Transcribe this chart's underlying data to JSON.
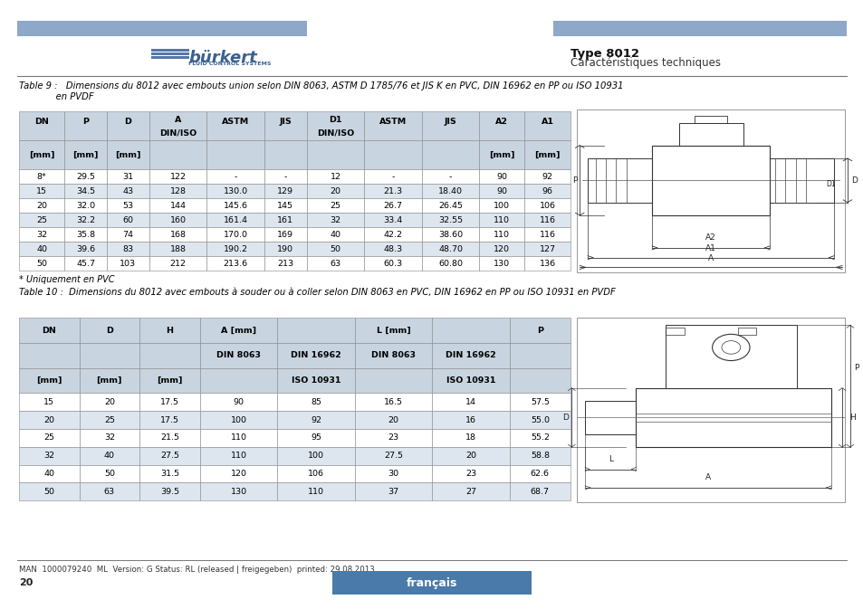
{
  "header_bar_color": "#8da8c8",
  "header_text_bold": "Type 8012",
  "header_text_normal": "Caractéristiques techniques",
  "footer_text": "MAN  1000079240  ML  Version: G Status: RL (released | freigegeben)  printed: 29.08.2013",
  "footer_label": "français",
  "footer_page": "20",
  "table1_caption_bold": "Table 9 : ",
  "table1_caption_rest": "  Dimensions du 8012 avec embouts union selon DIN 8063, ASTM D 1785/76 et JIS K en PVC, DIN 16962 en PP ou ISO 10931\n             en PVDF",
  "table1_data": [
    [
      "8*",
      "29.5",
      "31",
      "122",
      "-",
      "-",
      "12",
      "-",
      "-",
      "90",
      "92"
    ],
    [
      "15",
      "34.5",
      "43",
      "128",
      "130.0",
      "129",
      "20",
      "21.3",
      "18.40",
      "90",
      "96"
    ],
    [
      "20",
      "32.0",
      "53",
      "144",
      "145.6",
      "145",
      "25",
      "26.7",
      "26.45",
      "100",
      "106"
    ],
    [
      "25",
      "32.2",
      "60",
      "160",
      "161.4",
      "161",
      "32",
      "33.4",
      "32.55",
      "110",
      "116"
    ],
    [
      "32",
      "35.8",
      "74",
      "168",
      "170.0",
      "169",
      "40",
      "42.2",
      "38.60",
      "110",
      "116"
    ],
    [
      "40",
      "39.6",
      "83",
      "188",
      "190.2",
      "190",
      "50",
      "48.3",
      "48.70",
      "120",
      "127"
    ],
    [
      "50",
      "45.7",
      "103",
      "212",
      "213.6",
      "213",
      "63",
      "60.3",
      "60.80",
      "130",
      "136"
    ]
  ],
  "table1_footnote": "* Uniquement en PVC",
  "table2_caption_bold": "Table 10 : ",
  "table2_caption_rest": " Dimensions du 8012 avec embouts à souder ou à coller selon DIN 8063 en PVC, DIN 16962 en PP ou ISO 10931 en PVDF",
  "table2_data": [
    [
      "15",
      "20",
      "17.5",
      "90",
      "85",
      "16.5",
      "14",
      "57.5"
    ],
    [
      "20",
      "25",
      "17.5",
      "100",
      "92",
      "20",
      "16",
      "55.0"
    ],
    [
      "25",
      "32",
      "21.5",
      "110",
      "95",
      "23",
      "18",
      "55.2"
    ],
    [
      "32",
      "40",
      "27.5",
      "110",
      "100",
      "27.5",
      "20",
      "58.8"
    ],
    [
      "40",
      "50",
      "31.5",
      "120",
      "106",
      "30",
      "23",
      "62.6"
    ],
    [
      "50",
      "63",
      "39.5",
      "130",
      "110",
      "37",
      "27",
      "68.7"
    ]
  ],
  "table_header_bg": "#c8d4e0",
  "table_row_alt_bg": "#dde6ef",
  "table_row_bg": "#ffffff",
  "text_color": "#000000",
  "bg_color": "#ffffff"
}
